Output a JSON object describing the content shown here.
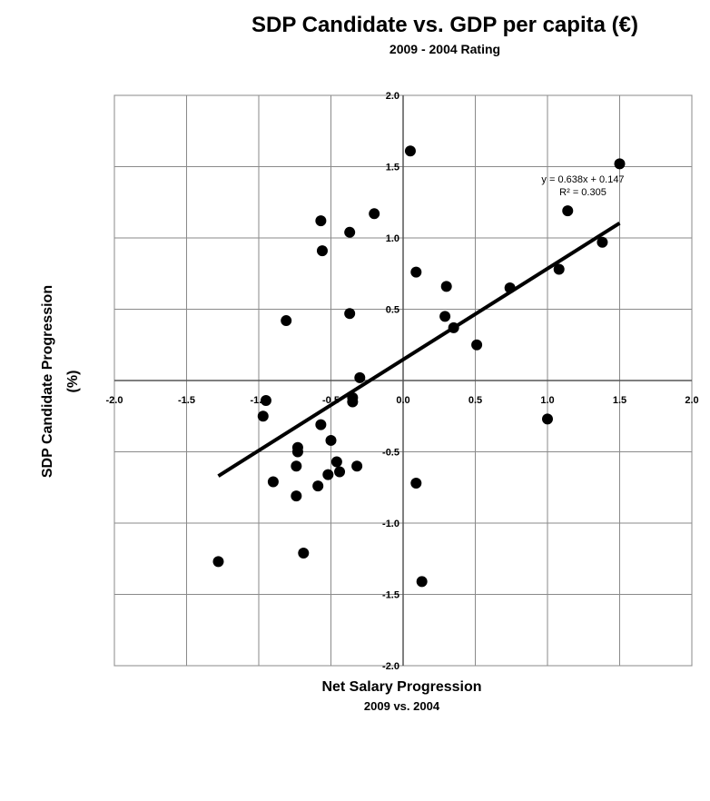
{
  "chart_data": {
    "type": "scatter",
    "title": "SDP Candidate vs. GDP per capita (€)",
    "subtitle": "2009 - 2004 Rating",
    "xlabel": "Net Salary Progression",
    "xlabel_sub": "2009 vs. 2004",
    "ylabel": "SDP Candidate Progression",
    "ylabel_sub": "(%)",
    "xlim": [
      -2.0,
      2.0
    ],
    "ylim": [
      -2.0,
      2.0
    ],
    "x_ticks": [
      "-2.0",
      "-1.5",
      "-1.0",
      "-0.5",
      "0.0",
      "0.5",
      "1.0",
      "1.5",
      "2.0"
    ],
    "y_ticks": [
      "2.0",
      "1.5",
      "1.0",
      "0.5",
      "-0.5",
      "-1.0",
      "-1.5",
      "-2.0"
    ],
    "grid": true,
    "series": [
      {
        "points": [
          [
            0.05,
            1.61
          ],
          [
            1.5,
            1.52
          ],
          [
            1.14,
            1.19
          ],
          [
            -0.2,
            1.17
          ],
          [
            -0.57,
            1.12
          ],
          [
            -0.37,
            1.04
          ],
          [
            -0.56,
            0.91
          ],
          [
            1.38,
            0.97
          ],
          [
            1.08,
            0.78
          ],
          [
            0.09,
            0.76
          ],
          [
            0.74,
            0.65
          ],
          [
            0.3,
            0.66
          ],
          [
            -0.81,
            0.42
          ],
          [
            -0.37,
            0.47
          ],
          [
            0.29,
            0.45
          ],
          [
            0.35,
            0.37
          ],
          [
            0.51,
            0.25
          ],
          [
            -0.3,
            0.02
          ],
          [
            -0.35,
            -0.12
          ],
          [
            -0.35,
            -0.15
          ],
          [
            -0.95,
            -0.14
          ],
          [
            -0.97,
            -0.25
          ],
          [
            -0.57,
            -0.31
          ],
          [
            -0.5,
            -0.42
          ],
          [
            -0.73,
            -0.47
          ],
          [
            -0.73,
            -0.5
          ],
          [
            -0.46,
            -0.57
          ],
          [
            -0.32,
            -0.6
          ],
          [
            -0.74,
            -0.6
          ],
          [
            -0.52,
            -0.66
          ],
          [
            -0.44,
            -0.64
          ],
          [
            -0.9,
            -0.71
          ],
          [
            -0.59,
            -0.74
          ],
          [
            0.09,
            -0.72
          ],
          [
            -0.74,
            -0.81
          ],
          [
            1.0,
            -0.27
          ],
          [
            -0.69,
            -1.21
          ],
          [
            -1.28,
            -1.27
          ],
          [
            0.13,
            -1.41
          ]
        ]
      }
    ],
    "trendline": {
      "slope": 0.638,
      "intercept": 0.147,
      "x_range": [
        -1.28,
        1.5
      ],
      "equation": "y = 0.638x + 0.147",
      "r_squared": "R² = 0.305"
    }
  }
}
